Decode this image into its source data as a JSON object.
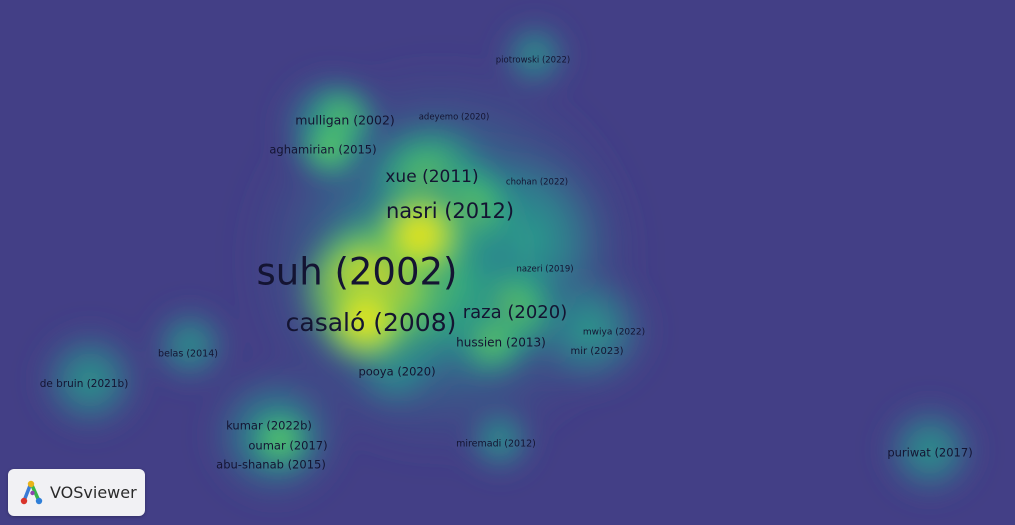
{
  "app": {
    "logo_text": "VOSviewer"
  },
  "colors": {
    "background": "#433f86",
    "density_low": "#2a9a8b",
    "density_mid": "#6cd055",
    "density_high": "#f7ea1a",
    "label": "#141432"
  },
  "items": [
    {
      "label": "suh (2002)",
      "weight": 10
    },
    {
      "label": "casaló (2008)",
      "weight": 7
    },
    {
      "label": "nasri (2012)",
      "weight": 5
    },
    {
      "label": "xue (2011)",
      "weight": 4
    },
    {
      "label": "raza (2020)",
      "weight": 4
    },
    {
      "label": "mulligan (2002)",
      "weight": 3
    },
    {
      "label": "aghamirian (2015)",
      "weight": 2
    },
    {
      "label": "hussien (2013)",
      "weight": 2
    },
    {
      "label": "pooya (2020)",
      "weight": 2
    },
    {
      "label": "kumar (2022b)",
      "weight": 2
    },
    {
      "label": "oumar (2017)",
      "weight": 2
    },
    {
      "label": "abu-shanab (2015)",
      "weight": 2
    },
    {
      "label": "de bruin (2021b)",
      "weight": 1
    },
    {
      "label": "belas (2014)",
      "weight": 1
    },
    {
      "label": "puriwat (2017)",
      "weight": 1
    },
    {
      "label": "piotrowski (2022)",
      "weight": 1
    },
    {
      "label": "adeyemo (2020)",
      "weight": 1
    },
    {
      "label": "chohan (2022)",
      "weight": 1
    },
    {
      "label": "nazeri (2019)",
      "weight": 1
    },
    {
      "label": "mwiya (2022)",
      "weight": 1
    },
    {
      "label": "mir (2023)",
      "weight": 1
    },
    {
      "label": "miremadi (2012)",
      "weight": 1
    }
  ]
}
